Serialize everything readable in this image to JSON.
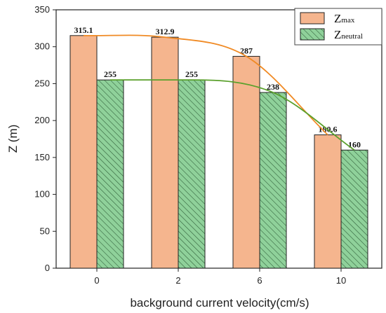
{
  "chart_data": {
    "type": "bar",
    "categories": [
      "0",
      "2",
      "6",
      "10"
    ],
    "series": [
      {
        "name": "Z",
        "subscript": "max",
        "values": [
          315.1,
          312.9,
          287,
          180.6
        ],
        "labels": [
          "315.1",
          "312.9",
          "287",
          "180.6"
        ],
        "color": "#F5B58E",
        "stroke": "#222222",
        "trend_color": "#F08A24"
      },
      {
        "name": "Z",
        "subscript": "neutral",
        "values": [
          255,
          255,
          238,
          160
        ],
        "labels": [
          "255",
          "255",
          "238",
          "160"
        ],
        "color": "#8FD19A",
        "stroke": "#222222",
        "hatch": true,
        "trend_color": "#5AA02C"
      }
    ],
    "xlabel": "background current velocity(cm/s)",
    "ylabel": "Z (m)",
    "ylim": [
      0,
      350
    ],
    "yticks": [
      0,
      50,
      100,
      150,
      200,
      250,
      300,
      350
    ],
    "grid": false,
    "legend": "top-right"
  }
}
